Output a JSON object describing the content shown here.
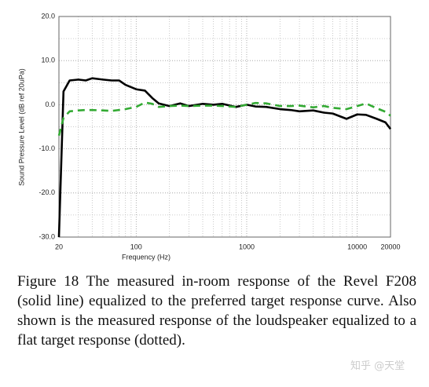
{
  "chart_data": {
    "type": "line",
    "x_label": "Frequency (Hz)",
    "y_label": "Sound Pressure Level (dB ref 20uPa)",
    "x": [
      20,
      22,
      25,
      30,
      35,
      40,
      50,
      60,
      70,
      80,
      100,
      120,
      140,
      160,
      200,
      250,
      300,
      400,
      500,
      600,
      800,
      1000,
      1200,
      1500,
      2000,
      2500,
      3000,
      4000,
      5000,
      6000,
      8000,
      10000,
      12000,
      15000,
      18000,
      20000
    ],
    "series": [
      {
        "color": "#000000",
        "dash": "solid",
        "values": [
          -30,
          3,
          5.5,
          5.7,
          5.5,
          6,
          5.7,
          5.5,
          5.5,
          4.5,
          3.5,
          3.2,
          1.5,
          0.3,
          -0.3,
          0.3,
          -0.3,
          0.2,
          0,
          0.2,
          -0.5,
          0,
          -0.4,
          -0.5,
          -1,
          -1.2,
          -1.5,
          -1.3,
          -1.8,
          -2,
          -3.2,
          -2.2,
          -2.3,
          -3.2,
          -4,
          -5.5
        ]
      },
      {
        "color": "#33aa33",
        "dash": "dashed",
        "values": [
          -7,
          -3,
          -1.5,
          -1.3,
          -1.2,
          -1.2,
          -1.3,
          -1.4,
          -1.2,
          -1,
          -0.5,
          0.5,
          0.2,
          -0.5,
          -0.3,
          -0.2,
          -0.3,
          -0.2,
          -0.2,
          -0.3,
          -0.5,
          0,
          0.4,
          0.3,
          -0.3,
          -0.3,
          -0.2,
          -0.6,
          -0.3,
          -0.7,
          -1,
          -0.3,
          0.3,
          -0.8,
          -1.6,
          -2.5
        ]
      }
    ],
    "log_x": true,
    "xlim": [
      20,
      20000
    ],
    "xticks": [
      20,
      100,
      1000,
      10000,
      20000
    ],
    "ylim": [
      -30,
      20
    ],
    "yticks": [
      {
        "value": -30,
        "label": "-30.0"
      },
      {
        "value": -20,
        "label": "-20.0"
      },
      {
        "value": -10,
        "label": "-10.0"
      },
      {
        "value": 0,
        "label": "0.0"
      },
      {
        "value": 10,
        "label": "10.0"
      },
      {
        "value": 20,
        "label": "20.0"
      }
    ],
    "grid": true
  },
  "caption": "Figure 18 The measured in-room response of the Revel F208 (solid line) equalized to the preferred target response curve. Also shown is the measured response of the loudspeaker equalized to a flat target response (dotted).",
  "watermark": "知乎 @天堂"
}
